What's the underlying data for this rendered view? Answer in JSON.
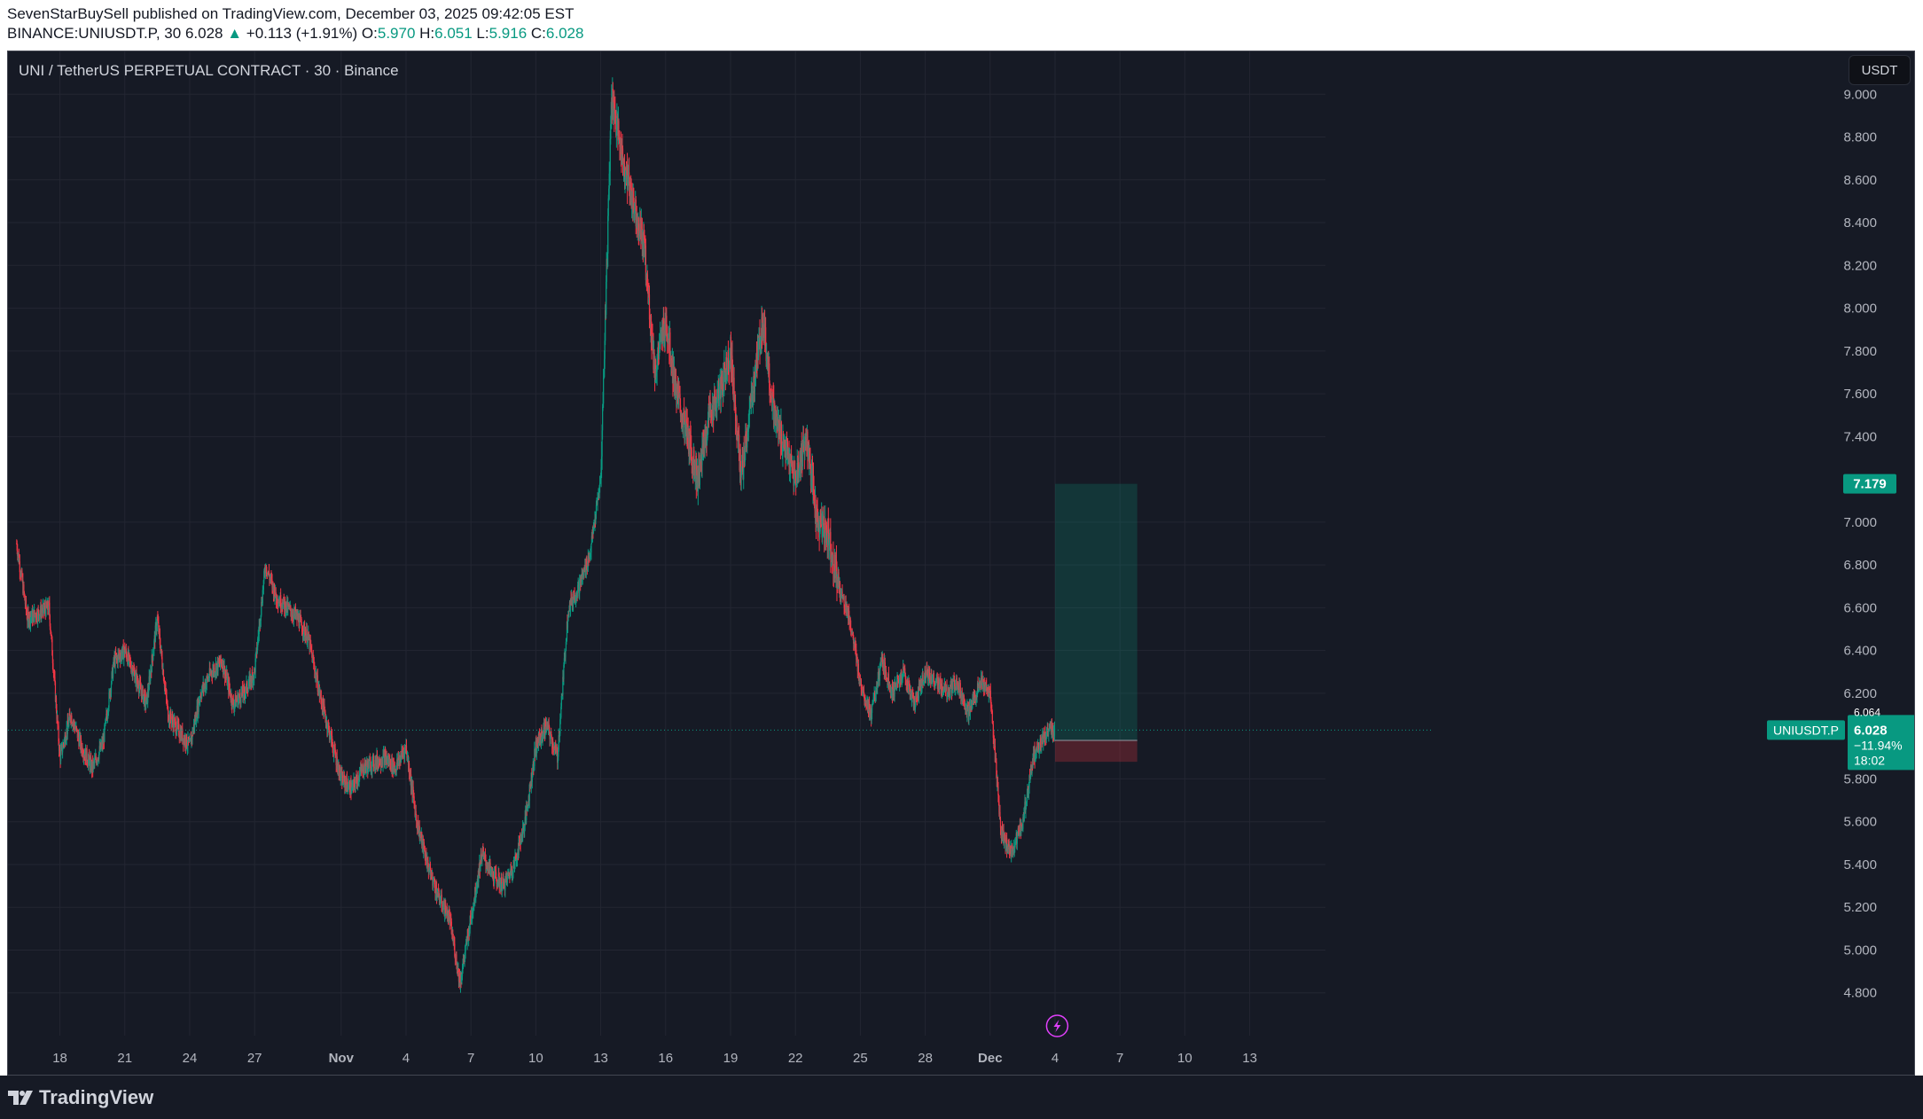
{
  "header": {
    "publisher": "SevenStarBuySell published on TradingView.com, December 03, 2025 09:42:05 EST",
    "symbol_interval": "BINANCE:UNIUSDT.P, 30",
    "last": "6.028",
    "change_arrow": "▲",
    "change": "+0.113 (+1.91%)",
    "o_label": "O:",
    "o": "5.970",
    "h_label": "H:",
    "h": "6.051",
    "l_label": "L:",
    "l": "5.916",
    "c_label": "C:",
    "c": "6.028"
  },
  "chart": {
    "title": "UNI / TetherUS PERPETUAL CONTRACT · 30 · Binance",
    "currency_button": "USDT",
    "symbol_tag": "UNIUSDT.P",
    "price_box": {
      "price": "6.028",
      "change_pct": "−11.94%",
      "countdown": "18:02"
    },
    "target_label": "7.179",
    "hidden_price_label": "6.064"
  },
  "footer": {
    "brand": "TradingView"
  },
  "chart_data": {
    "type": "candlestick",
    "ylim": [
      4.6,
      9.2
    ],
    "y_ticks": [
      "9.000",
      "8.800",
      "8.600",
      "8.400",
      "8.200",
      "8.000",
      "7.800",
      "7.600",
      "7.400",
      "7.000",
      "6.800",
      "6.600",
      "6.400",
      "6.200",
      "5.800",
      "5.600",
      "5.400",
      "5.200",
      "5.000",
      "4.800"
    ],
    "x_ticks": [
      "18",
      "21",
      "24",
      "27",
      "Nov",
      "4",
      "7",
      "10",
      "13",
      "16",
      "19",
      "22",
      "25",
      "28",
      "Dec",
      "4",
      "7",
      "10",
      "13"
    ],
    "x_range_days": [
      -0.4,
      60.5
    ],
    "tick_days": [
      2,
      5,
      8,
      11,
      15,
      18,
      21,
      24,
      27,
      30,
      33,
      36,
      39,
      42,
      45,
      48,
      51,
      54,
      57
    ],
    "path": [
      [
        0,
        6.9
      ],
      [
        0.5,
        6.55
      ],
      [
        1.5,
        6.6
      ],
      [
        2,
        5.9
      ],
      [
        2.5,
        6.1
      ],
      [
        3,
        5.95
      ],
      [
        3.5,
        5.85
      ],
      [
        4,
        5.97
      ],
      [
        4.5,
        6.35
      ],
      [
        5,
        6.4
      ],
      [
        6,
        6.15
      ],
      [
        6.5,
        6.55
      ],
      [
        7,
        6.1
      ],
      [
        8,
        5.95
      ],
      [
        8.5,
        6.2
      ],
      [
        9,
        6.3
      ],
      [
        9.5,
        6.35
      ],
      [
        10,
        6.15
      ],
      [
        10.5,
        6.2
      ],
      [
        11,
        6.3
      ],
      [
        11.5,
        6.8
      ],
      [
        12,
        6.65
      ],
      [
        13,
        6.55
      ],
      [
        13.5,
        6.45
      ],
      [
        14,
        6.2
      ],
      [
        15,
        5.8
      ],
      [
        15.5,
        5.75
      ],
      [
        16,
        5.85
      ],
      [
        17,
        5.9
      ],
      [
        17.5,
        5.85
      ],
      [
        18,
        5.95
      ],
      [
        18.5,
        5.6
      ],
      [
        19,
        5.4
      ],
      [
        19.5,
        5.25
      ],
      [
        20,
        5.15
      ],
      [
        20.5,
        4.85
      ],
      [
        21,
        5.15
      ],
      [
        21.5,
        5.45
      ],
      [
        22,
        5.35
      ],
      [
        22.5,
        5.3
      ],
      [
        23,
        5.4
      ],
      [
        23.5,
        5.6
      ],
      [
        24,
        5.95
      ],
      [
        24.5,
        6.05
      ],
      [
        25,
        5.9
      ],
      [
        25.5,
        6.6
      ],
      [
        26,
        6.7
      ],
      [
        26.5,
        6.85
      ],
      [
        27,
        7.2
      ],
      [
        27.5,
        9.0
      ],
      [
        28,
        8.7
      ],
      [
        28.5,
        8.5
      ],
      [
        29,
        8.3
      ],
      [
        29.5,
        7.7
      ],
      [
        30,
        7.95
      ],
      [
        30.5,
        7.6
      ],
      [
        31,
        7.4
      ],
      [
        31.5,
        7.2
      ],
      [
        32,
        7.5
      ],
      [
        32.5,
        7.6
      ],
      [
        33,
        7.8
      ],
      [
        33.5,
        7.2
      ],
      [
        34,
        7.6
      ],
      [
        34.5,
        7.95
      ],
      [
        35,
        7.5
      ],
      [
        35.5,
        7.35
      ],
      [
        36,
        7.2
      ],
      [
        36.5,
        7.4
      ],
      [
        37,
        7.0
      ],
      [
        37.5,
        6.95
      ],
      [
        38,
        6.7
      ],
      [
        38.5,
        6.55
      ],
      [
        39,
        6.25
      ],
      [
        39.5,
        6.1
      ],
      [
        40,
        6.35
      ],
      [
        40.5,
        6.2
      ],
      [
        41,
        6.3
      ],
      [
        41.5,
        6.15
      ],
      [
        42,
        6.3
      ],
      [
        42.5,
        6.25
      ],
      [
        43,
        6.2
      ],
      [
        43.5,
        6.25
      ],
      [
        44,
        6.1
      ],
      [
        44.5,
        6.25
      ],
      [
        45,
        6.2
      ],
      [
        45.5,
        5.55
      ],
      [
        46,
        5.45
      ],
      [
        46.5,
        5.6
      ],
      [
        47,
        5.9
      ],
      [
        47.5,
        6.0
      ],
      [
        48,
        6.03
      ]
    ],
    "position_tool": {
      "type": "long",
      "start_day": 48,
      "end_day": 51.8,
      "entry": 5.98,
      "target": 7.179,
      "stop": 5.88
    },
    "last_price": 6.028
  }
}
